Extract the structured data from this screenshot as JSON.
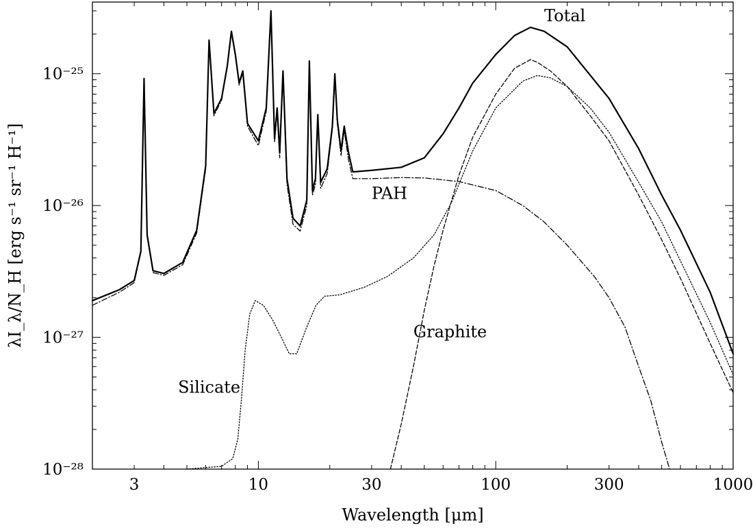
{
  "chart_data": {
    "type": "line",
    "xlabel": "Wavelength [μm]",
    "ylabel": "λI_λ/N_H [erg s⁻¹ sr⁻¹ H⁻¹]",
    "xscale": "log",
    "yscale": "log",
    "xlim": [
      2.0,
      1000
    ],
    "ylim": [
      1e-28,
      3.5e-25
    ],
    "x_ticks": [
      {
        "value": 3,
        "label": "3"
      },
      {
        "value": 10,
        "label": "10"
      },
      {
        "value": 30,
        "label": "30"
      },
      {
        "value": 100,
        "label": "100"
      },
      {
        "value": 300,
        "label": "300"
      },
      {
        "value": 1000,
        "label": "1000"
      }
    ],
    "y_ticks": [
      {
        "value": 1e-28,
        "label": "10⁻²⁸"
      },
      {
        "value": 1e-27,
        "label": "10⁻²⁷"
      },
      {
        "value": 1e-26,
        "label": "10⁻²⁶"
      },
      {
        "value": 1e-25,
        "label": "10⁻²⁵"
      }
    ],
    "grid": false,
    "legend": "none",
    "series": [
      {
        "name": "Total",
        "style": "solid",
        "color": "#000000",
        "points": [
          [
            2.0,
            1.9e-27
          ],
          [
            2.6,
            2.3e-27
          ],
          [
            3.0,
            2.7e-27
          ],
          [
            3.2,
            4.5e-27
          ],
          [
            3.3,
            9.2e-26
          ],
          [
            3.4,
            6e-27
          ],
          [
            3.6,
            3.2e-27
          ],
          [
            4.0,
            3.05e-27
          ],
          [
            4.8,
            3.7e-27
          ],
          [
            5.5,
            6.5e-27
          ],
          [
            6.0,
            2e-26
          ],
          [
            6.2,
            1.8e-25
          ],
          [
            6.5,
            5e-26
          ],
          [
            7.0,
            6.5e-26
          ],
          [
            7.4,
            1.15e-25
          ],
          [
            7.7,
            2.1e-25
          ],
          [
            8.0,
            1.4e-25
          ],
          [
            8.3,
            8.5e-26
          ],
          [
            8.6,
            1.05e-25
          ],
          [
            9.0,
            4.2e-26
          ],
          [
            10.0,
            3.1e-26
          ],
          [
            10.8,
            5.5e-26
          ],
          [
            11.3,
            3e-25
          ],
          [
            11.7,
            3.2e-26
          ],
          [
            12.0,
            5.5e-26
          ],
          [
            12.3,
            2.5e-26
          ],
          [
            12.7,
            1.05e-25
          ],
          [
            13.2,
            1.6e-26
          ],
          [
            14.0,
            8e-27
          ],
          [
            15.0,
            7e-27
          ],
          [
            16.0,
            1.1e-26
          ],
          [
            16.4,
            1.25e-25
          ],
          [
            16.9,
            1.3e-26
          ],
          [
            17.4,
            1.6e-26
          ],
          [
            17.8,
            4.9e-26
          ],
          [
            18.3,
            1.5e-26
          ],
          [
            19.5,
            1.9e-26
          ],
          [
            20.5,
            4e-26
          ],
          [
            21.0,
            1e-25
          ],
          [
            21.5,
            4.5e-26
          ],
          [
            22.3,
            2.6e-26
          ],
          [
            23.0,
            4e-26
          ],
          [
            24.0,
            2.5e-26
          ],
          [
            25.0,
            1.8e-26
          ],
          [
            30.0,
            1.85e-26
          ],
          [
            40.0,
            1.95e-26
          ],
          [
            50.0,
            2.3e-26
          ],
          [
            60.0,
            3.5e-26
          ],
          [
            70.0,
            5.5e-26
          ],
          [
            80.0,
            8.5e-26
          ],
          [
            100.0,
            1.4e-25
          ],
          [
            120.0,
            1.95e-25
          ],
          [
            140.0,
            2.25e-25
          ],
          [
            160.0,
            2.1e-25
          ],
          [
            200.0,
            1.6e-25
          ],
          [
            300.0,
            6.5e-26
          ],
          [
            400.0,
            2.7e-26
          ],
          [
            500.0,
            1.2e-26
          ],
          [
            600.0,
            6.5e-27
          ],
          [
            800.0,
            2.2e-27
          ],
          [
            1000.0,
            7.5e-28
          ]
        ]
      },
      {
        "name": "PAH",
        "style": "dashdot",
        "color": "#000000",
        "points": [
          [
            2.0,
            1.75e-27
          ],
          [
            2.6,
            2.2e-27
          ],
          [
            3.0,
            2.6e-27
          ],
          [
            3.2,
            4.4e-27
          ],
          [
            3.3,
            9.1e-26
          ],
          [
            3.4,
            5.8e-27
          ],
          [
            3.6,
            3.1e-27
          ],
          [
            4.0,
            2.95e-27
          ],
          [
            4.8,
            3.55e-27
          ],
          [
            5.5,
            6.2e-27
          ],
          [
            6.0,
            1.9e-26
          ],
          [
            6.2,
            1.75e-25
          ],
          [
            6.5,
            4.8e-26
          ],
          [
            7.0,
            6.3e-26
          ],
          [
            7.4,
            1.12e-25
          ],
          [
            7.7,
            2.05e-25
          ],
          [
            8.0,
            1.35e-25
          ],
          [
            8.3,
            8.2e-26
          ],
          [
            8.6,
            1.02e-25
          ],
          [
            9.0,
            4e-26
          ],
          [
            10.0,
            2.85e-26
          ],
          [
            10.8,
            5.2e-26
          ],
          [
            11.3,
            2.95e-25
          ],
          [
            11.7,
            3e-26
          ],
          [
            12.0,
            5.2e-26
          ],
          [
            12.3,
            2.3e-26
          ],
          [
            12.7,
            1e-25
          ],
          [
            13.2,
            1.45e-26
          ],
          [
            14.0,
            7.2e-27
          ],
          [
            15.0,
            6.4e-27
          ],
          [
            16.0,
            1e-26
          ],
          [
            16.4,
            1.2e-25
          ],
          [
            16.9,
            1.2e-26
          ],
          [
            17.4,
            1.45e-26
          ],
          [
            17.8,
            4.7e-26
          ],
          [
            18.3,
            1.35e-26
          ],
          [
            19.5,
            1.75e-26
          ],
          [
            20.5,
            3.8e-26
          ],
          [
            21.0,
            9.7e-26
          ],
          [
            21.5,
            4.2e-26
          ],
          [
            22.3,
            2.4e-26
          ],
          [
            23.0,
            3.7e-26
          ],
          [
            24.0,
            2.2e-26
          ],
          [
            25.0,
            1.6e-26
          ],
          [
            30.0,
            1.6e-26
          ],
          [
            40.0,
            1.63e-26
          ],
          [
            50.0,
            1.62e-26
          ],
          [
            70.0,
            1.52e-26
          ],
          [
            100.0,
            1.3e-26
          ],
          [
            130.0,
            1e-26
          ],
          [
            160.0,
            7.5e-27
          ],
          [
            200.0,
            5e-27
          ],
          [
            260.0,
            2.9e-27
          ],
          [
            300.0,
            2e-27
          ],
          [
            350.0,
            1.2e-27
          ],
          [
            400.0,
            6e-28
          ],
          [
            450.0,
            3.3e-28
          ],
          [
            500.0,
            1.6e-28
          ],
          [
            540.0,
            1e-28
          ]
        ]
      },
      {
        "name": "Graphite",
        "style": "dashed",
        "color": "#000000",
        "points": [
          [
            36.0,
            1e-28
          ],
          [
            38.0,
            1.5e-28
          ],
          [
            40.0,
            2.2e-28
          ],
          [
            45.0,
            6e-28
          ],
          [
            50.0,
            1.6e-27
          ],
          [
            55.0,
            3.5e-27
          ],
          [
            60.0,
            6.5e-27
          ],
          [
            70.0,
            1.7e-26
          ],
          [
            80.0,
            3.3e-26
          ],
          [
            100.0,
            7e-26
          ],
          [
            120.0,
            1.1e-25
          ],
          [
            140.0,
            1.28e-25
          ],
          [
            150.0,
            1.22e-25
          ],
          [
            170.0,
            1.05e-25
          ],
          [
            200.0,
            8e-26
          ],
          [
            250.0,
            4.8e-26
          ],
          [
            300.0,
            3.1e-26
          ],
          [
            400.0,
            1.2e-26
          ],
          [
            500.0,
            5.5e-27
          ],
          [
            600.0,
            2.8e-27
          ],
          [
            800.0,
            9e-28
          ],
          [
            1000.0,
            3.8e-28
          ]
        ]
      },
      {
        "name": "Silicate",
        "style": "dotted",
        "color": "#000000",
        "points": [
          [
            5.0,
            1e-28
          ],
          [
            7.0,
            1.05e-28
          ],
          [
            7.8,
            1.2e-28
          ],
          [
            8.2,
            1.7e-28
          ],
          [
            8.5,
            3.5e-28
          ],
          [
            8.8,
            8e-28
          ],
          [
            9.2,
            1.5e-27
          ],
          [
            9.7,
            1.9e-27
          ],
          [
            10.5,
            1.75e-27
          ],
          [
            11.5,
            1.35e-27
          ],
          [
            12.5,
            1e-27
          ],
          [
            13.5,
            7.5e-28
          ],
          [
            14.5,
            7.5e-28
          ],
          [
            16.0,
            1.2e-27
          ],
          [
            17.5,
            1.75e-27
          ],
          [
            19.0,
            2.05e-27
          ],
          [
            22.0,
            2.1e-27
          ],
          [
            28.0,
            2.4e-27
          ],
          [
            35.0,
            2.9e-27
          ],
          [
            45.0,
            4e-27
          ],
          [
            55.0,
            6e-27
          ],
          [
            65.0,
            1.05e-26
          ],
          [
            80.0,
            2.6e-26
          ],
          [
            100.0,
            5.5e-26
          ],
          [
            130.0,
            8.8e-26
          ],
          [
            150.0,
            9.7e-26
          ],
          [
            170.0,
            9.3e-26
          ],
          [
            200.0,
            8e-26
          ],
          [
            250.0,
            5.5e-26
          ],
          [
            300.0,
            3.6e-26
          ],
          [
            400.0,
            1.5e-26
          ],
          [
            500.0,
            7.5e-27
          ],
          [
            600.0,
            3.8e-27
          ],
          [
            800.0,
            1.3e-27
          ],
          [
            1000.0,
            5.2e-28
          ]
        ]
      }
    ],
    "annotations": [
      {
        "text": "Total",
        "x": 160,
        "y": 2.5e-25,
        "align": "start"
      },
      {
        "text": "PAH",
        "x": 30,
        "y": 1.12e-26,
        "align": "start"
      },
      {
        "text": "Graphite",
        "x": 45,
        "y": 1e-27,
        "align": "start"
      },
      {
        "text": "Silicate",
        "x": 8.4,
        "y": 3.8e-28,
        "align": "end"
      }
    ]
  }
}
